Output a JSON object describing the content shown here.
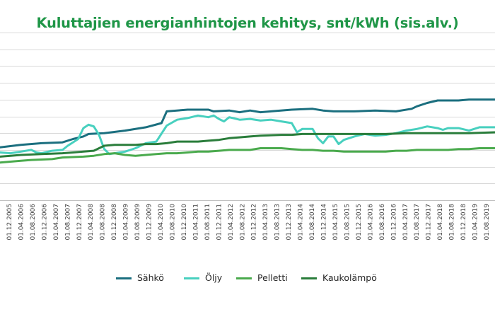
{
  "title": "Kuluttajien energianhintojen kehitys, snt/kWh (sis.alv.)",
  "chart_data": {
    "type": "line",
    "title": "Kuluttajien energianhintojen kehitys, snt/kWh (sis.alv.)",
    "xlabel": "",
    "ylabel": "",
    "grid": true,
    "legend_position": "bottom",
    "x_tick_labels": [
      "01.12.2005",
      "01.04.2006",
      "01.08.2006",
      "01.12.2006",
      "01.04.2007",
      "01.08.2007",
      "01.12.2007",
      "01.04.2008",
      "01.08.2008",
      "01.12.2008",
      "01.04.2009",
      "01.08.2009",
      "01.12.2009",
      "01.04.2010",
      "01.08.2010",
      "01.12.2010",
      "01.04.2011",
      "01.08.2011",
      "01.12.2011",
      "01.04.2012",
      "01.08.2012",
      "01.12.2012",
      "01.04.2013",
      "01.08.2013",
      "01.12.2013",
      "01.04.2014",
      "01.08.2014",
      "01.12.2014",
      "01.04.2015",
      "01.08.2015",
      "01.12.2015",
      "01.04.2016",
      "01.08.2016",
      "01.12.2016",
      "01.04.2017",
      "01.08.2017",
      "01.12.2017",
      "01.04.2018",
      "01.08.2018",
      "01.12.2018",
      "01.04.2019",
      "01.08.2019"
    ],
    "ylim": [
      0,
      20
    ],
    "y_gridlines": [
      0,
      2,
      4,
      6,
      8,
      10,
      12,
      14,
      16,
      18,
      20
    ],
    "series": [
      {
        "name": "Sähkö",
        "color": "#1b6f7f",
        "points": [
          [
            0,
            6.3
          ],
          [
            4,
            6.6
          ],
          [
            8,
            6.8
          ],
          [
            12,
            6.9
          ],
          [
            14,
            7.3
          ],
          [
            16,
            7.6
          ],
          [
            17,
            7.9
          ],
          [
            20,
            8.0
          ],
          [
            24,
            8.3
          ],
          [
            28,
            8.7
          ],
          [
            31,
            9.2
          ],
          [
            32,
            10.6
          ],
          [
            36,
            10.8
          ],
          [
            40,
            10.8
          ],
          [
            41,
            10.6
          ],
          [
            44,
            10.7
          ],
          [
            46,
            10.5
          ],
          [
            48,
            10.7
          ],
          [
            50,
            10.5
          ],
          [
            52,
            10.6
          ],
          [
            56,
            10.8
          ],
          [
            60,
            10.9
          ],
          [
            62,
            10.7
          ],
          [
            64,
            10.6
          ],
          [
            68,
            10.6
          ],
          [
            72,
            10.7
          ],
          [
            76,
            10.6
          ],
          [
            79,
            10.9
          ],
          [
            80,
            11.2
          ],
          [
            82,
            11.6
          ],
          [
            84,
            11.9
          ],
          [
            88,
            11.9
          ],
          [
            90,
            12.0
          ],
          [
            95,
            12.0
          ]
        ]
      },
      {
        "name": "Öljy",
        "color": "#48d0bf",
        "points": [
          [
            0,
            5.7
          ],
          [
            2,
            5.6
          ],
          [
            4,
            5.8
          ],
          [
            6,
            6.0
          ],
          [
            7,
            5.7
          ],
          [
            8,
            5.6
          ],
          [
            10,
            5.9
          ],
          [
            12,
            6.0
          ],
          [
            13,
            6.5
          ],
          [
            14,
            6.9
          ],
          [
            15,
            7.3
          ],
          [
            16,
            8.6
          ],
          [
            17,
            9.0
          ],
          [
            18,
            8.8
          ],
          [
            19,
            7.8
          ],
          [
            20,
            6.1
          ],
          [
            21,
            5.5
          ],
          [
            22,
            5.6
          ],
          [
            24,
            5.8
          ],
          [
            26,
            6.2
          ],
          [
            27,
            6.5
          ],
          [
            28,
            6.8
          ],
          [
            30,
            7.0
          ],
          [
            32,
            8.9
          ],
          [
            34,
            9.6
          ],
          [
            36,
            9.8
          ],
          [
            38,
            10.1
          ],
          [
            40,
            9.9
          ],
          [
            41,
            10.1
          ],
          [
            42,
            9.7
          ],
          [
            43,
            9.4
          ],
          [
            44,
            9.9
          ],
          [
            46,
            9.6
          ],
          [
            48,
            9.7
          ],
          [
            50,
            9.5
          ],
          [
            52,
            9.6
          ],
          [
            54,
            9.4
          ],
          [
            56,
            9.2
          ],
          [
            57,
            8.1
          ],
          [
            58,
            8.5
          ],
          [
            60,
            8.5
          ],
          [
            61,
            7.4
          ],
          [
            62,
            6.8
          ],
          [
            63,
            7.6
          ],
          [
            64,
            7.6
          ],
          [
            65,
            6.7
          ],
          [
            66,
            7.2
          ],
          [
            68,
            7.6
          ],
          [
            70,
            7.9
          ],
          [
            72,
            7.7
          ],
          [
            74,
            7.8
          ],
          [
            76,
            8.0
          ],
          [
            78,
            8.3
          ],
          [
            80,
            8.5
          ],
          [
            82,
            8.8
          ],
          [
            84,
            8.6
          ],
          [
            85,
            8.4
          ],
          [
            86,
            8.6
          ],
          [
            88,
            8.6
          ],
          [
            90,
            8.3
          ],
          [
            92,
            8.7
          ],
          [
            95,
            8.7
          ]
        ]
      },
      {
        "name": "Pelletti",
        "color": "#4aaa4d",
        "points": [
          [
            0,
            4.5
          ],
          [
            2,
            4.6
          ],
          [
            4,
            4.7
          ],
          [
            6,
            4.8
          ],
          [
            10,
            4.9
          ],
          [
            12,
            5.1
          ],
          [
            16,
            5.2
          ],
          [
            18,
            5.3
          ],
          [
            20,
            5.5
          ],
          [
            22,
            5.6
          ],
          [
            24,
            5.4
          ],
          [
            26,
            5.3
          ],
          [
            28,
            5.4
          ],
          [
            30,
            5.5
          ],
          [
            32,
            5.6
          ],
          [
            34,
            5.6
          ],
          [
            36,
            5.7
          ],
          [
            38,
            5.8
          ],
          [
            40,
            5.8
          ],
          [
            42,
            5.9
          ],
          [
            44,
            6.0
          ],
          [
            46,
            6.0
          ],
          [
            48,
            6.0
          ],
          [
            50,
            6.2
          ],
          [
            52,
            6.2
          ],
          [
            54,
            6.2
          ],
          [
            56,
            6.1
          ],
          [
            58,
            6.0
          ],
          [
            60,
            6.0
          ],
          [
            62,
            5.9
          ],
          [
            64,
            5.9
          ],
          [
            66,
            5.8
          ],
          [
            68,
            5.8
          ],
          [
            70,
            5.8
          ],
          [
            72,
            5.8
          ],
          [
            74,
            5.8
          ],
          [
            76,
            5.9
          ],
          [
            78,
            5.9
          ],
          [
            80,
            6.0
          ],
          [
            82,
            6.0
          ],
          [
            84,
            6.0
          ],
          [
            86,
            6.0
          ],
          [
            88,
            6.1
          ],
          [
            90,
            6.1
          ],
          [
            92,
            6.2
          ],
          [
            95,
            6.2
          ]
        ]
      },
      {
        "name": "Kaukolämpö",
        "color": "#2a7d3b",
        "points": [
          [
            0,
            5.2
          ],
          [
            2,
            5.3
          ],
          [
            4,
            5.4
          ],
          [
            8,
            5.5
          ],
          [
            12,
            5.6
          ],
          [
            14,
            5.7
          ],
          [
            16,
            5.8
          ],
          [
            18,
            5.9
          ],
          [
            20,
            6.5
          ],
          [
            22,
            6.6
          ],
          [
            24,
            6.6
          ],
          [
            26,
            6.6
          ],
          [
            28,
            6.7
          ],
          [
            30,
            6.7
          ],
          [
            32,
            6.8
          ],
          [
            34,
            7.0
          ],
          [
            38,
            7.0
          ],
          [
            40,
            7.1
          ],
          [
            42,
            7.2
          ],
          [
            44,
            7.4
          ],
          [
            46,
            7.5
          ],
          [
            48,
            7.6
          ],
          [
            50,
            7.7
          ],
          [
            54,
            7.8
          ],
          [
            56,
            7.8
          ],
          [
            58,
            7.9
          ],
          [
            62,
            7.9
          ],
          [
            66,
            7.9
          ],
          [
            70,
            7.9
          ],
          [
            74,
            7.9
          ],
          [
            78,
            8.0
          ],
          [
            82,
            8.0
          ],
          [
            86,
            8.0
          ],
          [
            90,
            8.0
          ],
          [
            95,
            8.1
          ]
        ]
      }
    ]
  }
}
